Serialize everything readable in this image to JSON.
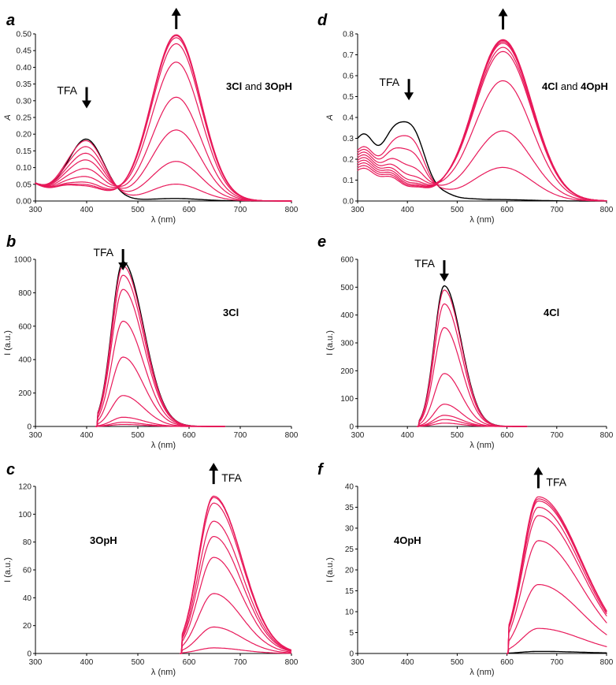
{
  "figure": {
    "line_color": "#e8195a",
    "black_color": "#000000"
  },
  "chart_data": [
    {
      "id": "a",
      "panel_label": "a",
      "type": "line",
      "title": "",
      "annotation": {
        "parts": [
          {
            "t": "3Cl",
            "bold": true
          },
          {
            "t": " and ",
            "bold": false
          },
          {
            "t": "3OpH",
            "bold": true
          }
        ]
      },
      "arrow_label": "TFA",
      "arrows": [
        {
          "x": 400,
          "y": 0.31,
          "dir": "down",
          "label": true
        },
        {
          "x": 575,
          "y": 0.545,
          "dir": "up",
          "label": false
        }
      ],
      "xlabel": "λ (nm)",
      "ylabel": "A",
      "ylabel_italic": true,
      "xlim": [
        300,
        800
      ],
      "ylim": [
        0,
        0.5
      ],
      "xticks": [
        300,
        400,
        500,
        600,
        700,
        800
      ],
      "yticks": [
        0,
        0.05,
        0.1,
        0.15,
        0.2,
        0.25,
        0.3,
        0.35,
        0.4,
        0.45,
        0.5
      ],
      "ytick_decimals": 2,
      "model": {
        "kind": "abs",
        "baseline": 0.052,
        "p1": {
          "center": 400,
          "width": 34,
          "heights": [
            0.175,
            0.17,
            0.152,
            0.132,
            0.112,
            0.086,
            0.062,
            0.045,
            0.038,
            0.034
          ]
        },
        "p2": {
          "center": 575,
          "width": 48,
          "heights": [
            0.007,
            0.05,
            0.118,
            0.212,
            0.31,
            0.415,
            0.47,
            0.488,
            0.494,
            0.497
          ]
        },
        "shoulder": 0.012
      },
      "series": [
        {
          "name": "0",
          "color": "black"
        },
        {
          "name": "1",
          "color": "red"
        },
        {
          "name": "2",
          "color": "red"
        },
        {
          "name": "3",
          "color": "red"
        },
        {
          "name": "4",
          "color": "red"
        },
        {
          "name": "5",
          "color": "red"
        },
        {
          "name": "6",
          "color": "red"
        },
        {
          "name": "7",
          "color": "red"
        },
        {
          "name": "8",
          "color": "red"
        },
        {
          "name": "9",
          "color": "red"
        }
      ]
    },
    {
      "id": "b",
      "panel_label": "b",
      "type": "line",
      "title": "",
      "annotation": {
        "parts": [
          {
            "t": "3Cl",
            "bold": true
          }
        ]
      },
      "arrow_label": "TFA",
      "arrows": [
        {
          "x": 471,
          "y": 1000,
          "dir": "down",
          "label": true
        }
      ],
      "xlabel": "λ (nm)",
      "ylabel": "I (a.u.)",
      "ylabel_italic": false,
      "xlim": [
        300,
        800
      ],
      "ylim": [
        0,
        1000
      ],
      "xticks": [
        300,
        400,
        500,
        600,
        700,
        800
      ],
      "yticks": [
        0,
        200,
        400,
        600,
        800,
        1000
      ],
      "ytick_decimals": 0,
      "model": {
        "kind": "emission",
        "center": 471,
        "left_width": 22,
        "right_width": 40,
        "start": 418,
        "end": 670,
        "peaks": [
          985,
          960,
          905,
          820,
          630,
          415,
          185,
          55,
          25,
          12
        ]
      },
      "series": [
        {
          "name": "0",
          "color": "black"
        },
        {
          "name": "1",
          "color": "red"
        },
        {
          "name": "2",
          "color": "red"
        },
        {
          "name": "3",
          "color": "red"
        },
        {
          "name": "4",
          "color": "red"
        },
        {
          "name": "5",
          "color": "red"
        },
        {
          "name": "6",
          "color": "red"
        },
        {
          "name": "7",
          "color": "red"
        },
        {
          "name": "8",
          "color": "red"
        },
        {
          "name": "9",
          "color": "red"
        }
      ]
    },
    {
      "id": "c",
      "panel_label": "c",
      "type": "line",
      "title": "",
      "annotation": {
        "parts": [
          {
            "t": "3OpH",
            "bold": true
          }
        ]
      },
      "arrow_label": "TFA",
      "arrows": [
        {
          "x": 648,
          "y": 129,
          "dir": "up",
          "label": true
        }
      ],
      "xlabel": "λ (nm)",
      "ylabel": "I (a.u.)",
      "ylabel_italic": false,
      "xlim": [
        300,
        800
      ],
      "ylim": [
        0,
        120
      ],
      "xticks": [
        300,
        400,
        500,
        600,
        700,
        800
      ],
      "yticks": [
        0,
        20,
        40,
        60,
        80,
        100,
        120
      ],
      "ytick_decimals": 0,
      "model": {
        "kind": "emission",
        "center": 648,
        "left_width": 30,
        "right_width": 55,
        "start": 583,
        "end": 800,
        "peaks": [
          4,
          19,
          43,
          69,
          84,
          95,
          108,
          112,
          113
        ]
      },
      "series": [
        {
          "name": "1",
          "color": "red"
        },
        {
          "name": "2",
          "color": "red"
        },
        {
          "name": "3",
          "color": "red"
        },
        {
          "name": "4",
          "color": "red"
        },
        {
          "name": "5",
          "color": "red"
        },
        {
          "name": "6",
          "color": "red"
        },
        {
          "name": "7",
          "color": "red"
        },
        {
          "name": "8",
          "color": "red"
        },
        {
          "name": "9",
          "color": "red"
        }
      ]
    },
    {
      "id": "d",
      "panel_label": "d",
      "type": "line",
      "title": "",
      "annotation": {
        "parts": [
          {
            "t": "4Cl",
            "bold": true
          },
          {
            "t": " and ",
            "bold": false
          },
          {
            "t": "4OpH",
            "bold": true
          }
        ]
      },
      "arrow_label": "TFA",
      "arrows": [
        {
          "x": 403,
          "y": 0.535,
          "dir": "down",
          "label": true
        },
        {
          "x": 592,
          "y": 0.87,
          "dir": "up",
          "label": false
        }
      ],
      "xlabel": "λ (nm)",
      "ylabel": "A",
      "ylabel_italic": true,
      "xlim": [
        300,
        800
      ],
      "ylim": [
        0,
        0.8
      ],
      "xticks": [
        300,
        400,
        500,
        600,
        700,
        800
      ],
      "yticks": [
        0,
        0.1,
        0.2,
        0.3,
        0.4,
        0.5,
        0.6,
        0.7,
        0.8
      ],
      "ytick_decimals": 1,
      "model": {
        "kind": "abs4",
        "tail_amp": 0.3,
        "p1": {
          "center": 403,
          "width": 28,
          "heights": [
            0.24,
            0.2,
            0.14,
            0.07,
            0.03,
            0.012,
            0.005,
            0.002,
            0.001,
            0.001
          ]
        },
        "p2": {
          "center": 592,
          "width": 58,
          "heights": [
            0.006,
            0.16,
            0.335,
            0.575,
            0.715,
            0.735,
            0.755,
            0.762,
            0.768,
            0.772
          ]
        }
      },
      "series": [
        {
          "name": "0",
          "color": "black"
        },
        {
          "name": "1",
          "color": "red"
        },
        {
          "name": "2",
          "color": "red"
        },
        {
          "name": "3",
          "color": "red"
        },
        {
          "name": "4",
          "color": "red"
        },
        {
          "name": "5",
          "color": "red"
        },
        {
          "name": "6",
          "color": "red"
        },
        {
          "name": "7",
          "color": "red"
        },
        {
          "name": "8",
          "color": "red"
        },
        {
          "name": "9",
          "color": "red"
        }
      ]
    },
    {
      "id": "e",
      "panel_label": "e",
      "type": "line",
      "title": "",
      "annotation": {
        "parts": [
          {
            "t": "4Cl",
            "bold": true
          }
        ]
      },
      "arrow_label": "TFA",
      "arrows": [
        {
          "x": 474,
          "y": 560,
          "dir": "down",
          "label": true
        }
      ],
      "xlabel": "λ (nm)",
      "ylabel": "I (a.u.)",
      "ylabel_italic": false,
      "xlim": [
        300,
        800
      ],
      "ylim": [
        0,
        600
      ],
      "xticks": [
        300,
        400,
        500,
        600,
        700,
        800
      ],
      "yticks": [
        0,
        100,
        200,
        300,
        400,
        500,
        600
      ],
      "ytick_decimals": 0,
      "model": {
        "kind": "emission",
        "center": 474,
        "left_width": 20,
        "right_width": 34,
        "start": 420,
        "end": 640,
        "peaks": [
          505,
          490,
          440,
          355,
          190,
          80,
          40,
          25,
          12
        ]
      },
      "series": [
        {
          "name": "0",
          "color": "black"
        },
        {
          "name": "1",
          "color": "red"
        },
        {
          "name": "2",
          "color": "red"
        },
        {
          "name": "3",
          "color": "red"
        },
        {
          "name": "4",
          "color": "red"
        },
        {
          "name": "5",
          "color": "red"
        },
        {
          "name": "6",
          "color": "red"
        },
        {
          "name": "7",
          "color": "red"
        },
        {
          "name": "8",
          "color": "red"
        }
      ]
    },
    {
      "id": "f",
      "panel_label": "f",
      "type": "line",
      "title": "",
      "annotation": {
        "parts": [
          {
            "t": "4OpH",
            "bold": true
          }
        ]
      },
      "arrow_label": "TFA",
      "arrows": [
        {
          "x": 663,
          "y": 42,
          "dir": "up",
          "label": true
        }
      ],
      "xlabel": "λ (nm)",
      "ylabel": "I (a.u.)",
      "ylabel_italic": false,
      "xlim": [
        300,
        800
      ],
      "ylim": [
        0,
        40
      ],
      "xticks": [
        300,
        400,
        500,
        600,
        700,
        800
      ],
      "yticks": [
        0,
        5,
        10,
        15,
        20,
        25,
        30,
        35,
        40
      ],
      "ytick_decimals": 0,
      "model": {
        "kind": "emission",
        "center": 663,
        "left_width": 32,
        "right_width": 85,
        "start": 600,
        "end": 800,
        "peaks": [
          0.5,
          6,
          16.5,
          27,
          33,
          35,
          36.5,
          37,
          37.5
        ]
      },
      "series": [
        {
          "name": "0",
          "color": "black"
        },
        {
          "name": "1",
          "color": "red"
        },
        {
          "name": "2",
          "color": "red"
        },
        {
          "name": "3",
          "color": "red"
        },
        {
          "name": "4",
          "color": "red"
        },
        {
          "name": "5",
          "color": "red"
        },
        {
          "name": "6",
          "color": "red"
        },
        {
          "name": "7",
          "color": "red"
        },
        {
          "name": "8",
          "color": "red"
        }
      ]
    }
  ]
}
